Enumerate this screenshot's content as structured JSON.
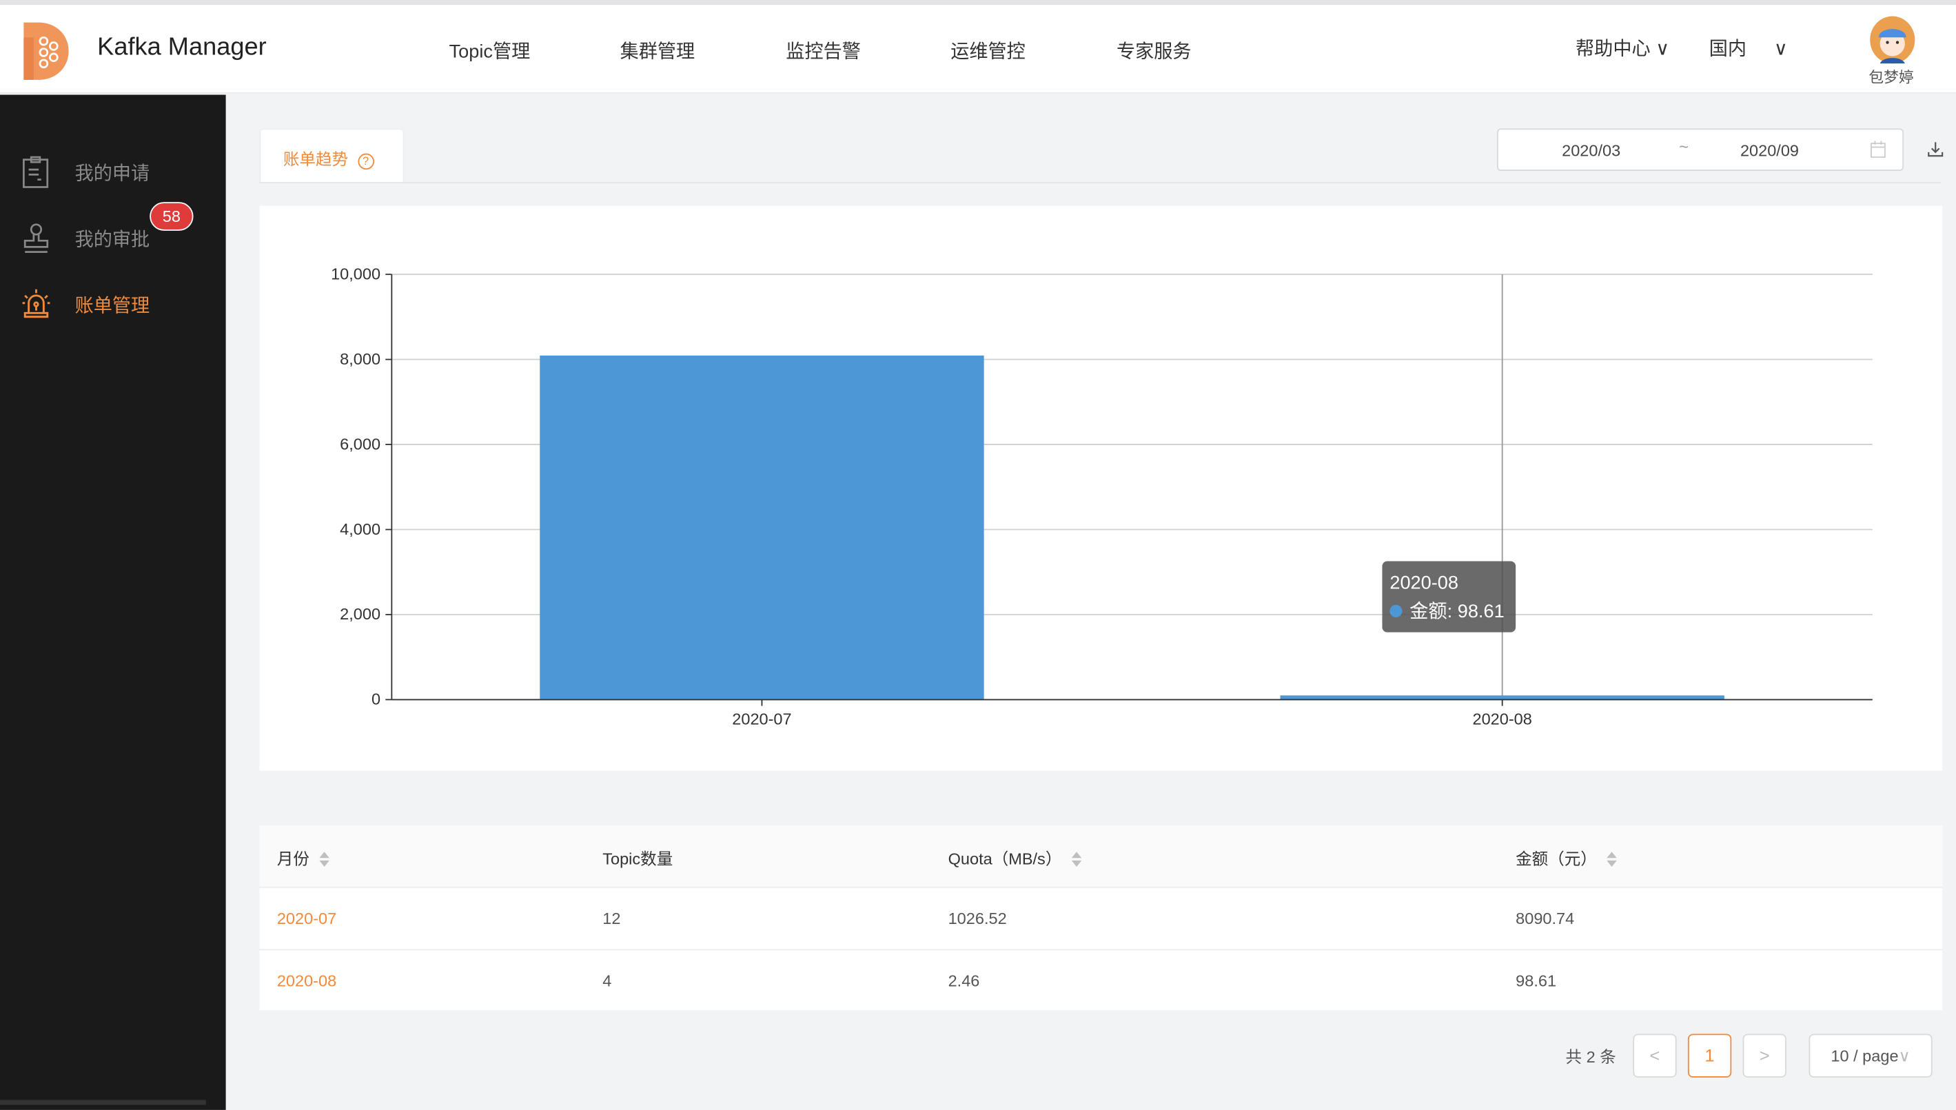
{
  "header": {
    "app_title": "Kafka Manager",
    "nav": [
      "Topic管理",
      "集群管理",
      "监控告警",
      "运维管控",
      "专家服务"
    ],
    "help": "帮助中心",
    "region": "国内",
    "user_name": "包梦婷"
  },
  "sidebar": {
    "items": [
      {
        "label": "我的申请",
        "icon": "clipboard-icon"
      },
      {
        "label": "我的审批",
        "icon": "stamp-icon",
        "badge": "58"
      },
      {
        "label": "账单管理",
        "icon": "alarm-light-icon",
        "active": true
      }
    ]
  },
  "main": {
    "tab_label": "账单趋势",
    "date_start": "2020/03",
    "date_sep": "~",
    "date_end": "2020/09"
  },
  "chart_data": {
    "type": "bar",
    "categories": [
      "2020-07",
      "2020-08"
    ],
    "series": [
      {
        "name": "金额",
        "values": [
          8090.74,
          98.61
        ]
      }
    ],
    "ylim": [
      0,
      10000
    ],
    "yticks": [
      "0",
      "2,000",
      "4,000",
      "6,000",
      "8,000",
      "10,000"
    ],
    "grid": true,
    "color": "#4e97d6",
    "tooltip": {
      "title": "2020-08",
      "label": "金额",
      "value": "98.61"
    }
  },
  "table": {
    "headers": [
      "月份",
      "Topic数量",
      "Quota（MB/s）",
      "金额（元）"
    ],
    "rows": [
      [
        "2020-07",
        "12",
        "1026.52",
        "8090.74"
      ],
      [
        "2020-08",
        "4",
        "2.46",
        "98.61"
      ]
    ]
  },
  "pagination": {
    "total": "共 2 条",
    "current": "1",
    "page_size": "10 / page"
  },
  "colors": {
    "accent": "#f08a3c",
    "sidebar": "#1a1a1a",
    "badge": "#e03b3b",
    "bar": "#4e97d6"
  }
}
